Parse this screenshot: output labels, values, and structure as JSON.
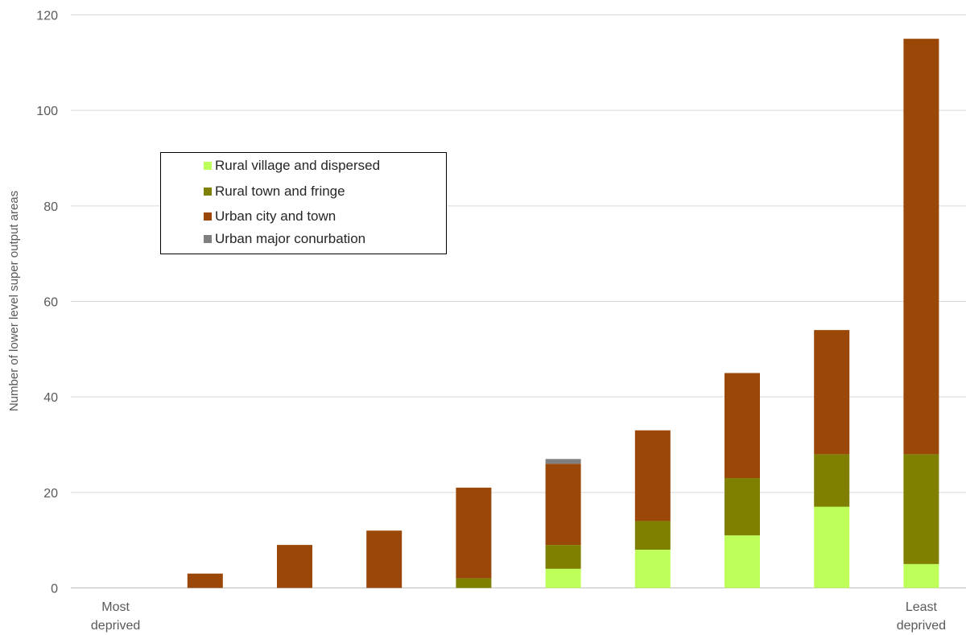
{
  "chart_data": {
    "type": "bar",
    "stacked": true,
    "title": "",
    "xlabel": "",
    "ylabel": "Number of lower level super output areas",
    "ylim": [
      0,
      120
    ],
    "yticks": [
      0,
      20,
      40,
      60,
      80,
      100,
      120
    ],
    "grid": true,
    "legend_position": "upper-left",
    "categories": [
      "1",
      "2",
      "3",
      "4",
      "5",
      "6",
      "7",
      "8",
      "9",
      "10"
    ],
    "x_tick_labels": [
      {
        "index": 0,
        "lines": [
          "Most",
          "deprived"
        ]
      },
      {
        "index": 9,
        "lines": [
          "Least",
          "deprived"
        ]
      }
    ],
    "series": [
      {
        "name": "Rural village and dispersed",
        "color": "#bfff5a",
        "values": [
          0,
          0,
          0,
          0,
          0,
          4,
          8,
          11,
          17,
          5
        ]
      },
      {
        "name": "Rural town and fringe",
        "color": "#7f8000",
        "values": [
          0,
          0,
          0,
          0,
          2,
          5,
          6,
          12,
          11,
          23
        ]
      },
      {
        "name": "Urban city and town",
        "color": "#9a4707",
        "values": [
          0,
          3,
          9,
          12,
          19,
          17,
          19,
          22,
          26,
          87
        ]
      },
      {
        "name": "Urban major conurbation",
        "color": "#7f7f7f",
        "values": [
          0,
          0,
          0,
          0,
          0,
          1,
          0,
          0,
          0,
          0
        ]
      }
    ]
  }
}
